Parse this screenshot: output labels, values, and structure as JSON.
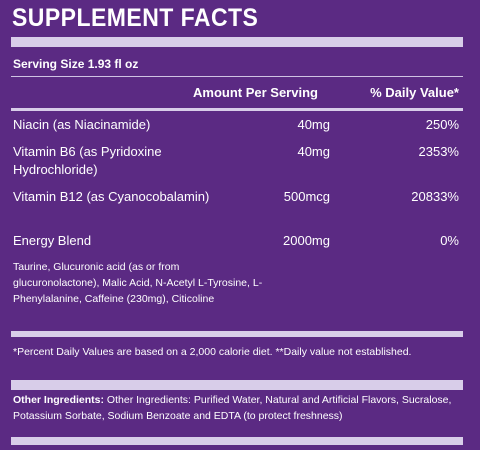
{
  "title": "SUPPLEMENT FACTS",
  "serving_size": "Serving Size 1.93 fl oz",
  "header": {
    "amount": "Amount Per Serving",
    "daily_value": "% Daily Value*"
  },
  "rows": [
    {
      "name": "Niacin (as Niacinamide)",
      "amount": "40mg",
      "dv": "250%"
    },
    {
      "name": "Vitamin B6 (as Pyridoxine Hydrochloride)",
      "amount": "40mg",
      "dv": "2353%"
    },
    {
      "name": "Vitamin B12 (as Cyanocobalamin)",
      "amount": "500mcg",
      "dv": "20833%"
    },
    {
      "name": "Energy Blend",
      "amount": "2000mg",
      "dv": "0%"
    }
  ],
  "blend_ingredients": "Taurine, Glucuronic acid (as or from glucuronolactone), Malic Acid, N-Acetyl L-Tyrosine, L-Phenylalanine, Caffeine (230mg), Citicoline",
  "footnote": "*Percent Daily Values are based on a 2,000 calorie diet. **Daily value not established.",
  "other_ingredients": {
    "label": "Other Ingredients:",
    "text": " Other Ingredients: Purified Water, Natural and Artificial Flavors, Sucralose, Potassium Sorbate, Sodium Benzoate and EDTA (to protect freshness)"
  }
}
